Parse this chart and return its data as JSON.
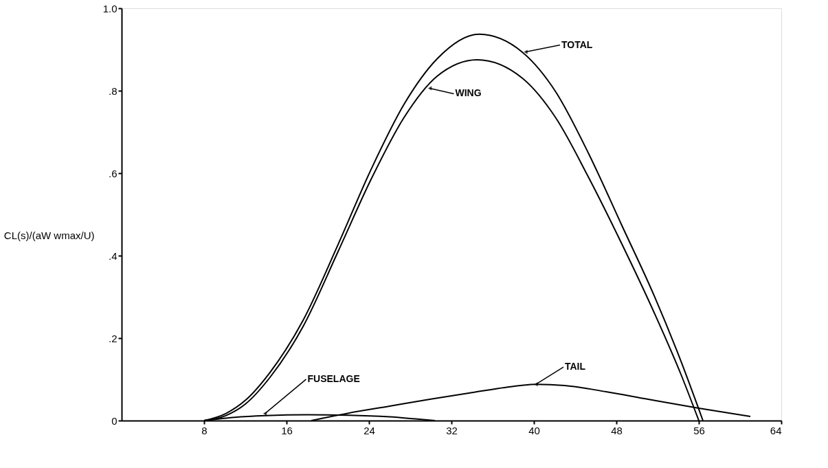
{
  "chart_data": {
    "type": "line",
    "ylabel": "CL(s)/(aW wmax/U)",
    "xlim": [
      0,
      64
    ],
    "xticks": [
      8,
      16,
      24,
      32,
      40,
      48,
      56,
      64
    ],
    "ylim": [
      0,
      1.0
    ],
    "yticks": [
      {
        "value": 0,
        "label": "0"
      },
      {
        "value": 0.2,
        "label": ".2"
      },
      {
        "value": 0.4,
        "label": ".4"
      },
      {
        "value": 0.6,
        "label": ".6"
      },
      {
        "value": 0.8,
        "label": ".8"
      },
      {
        "value": 1.0,
        "label": "1.0"
      }
    ],
    "grid": false,
    "legend": false,
    "marker": "none",
    "line_style": "solid",
    "series": [
      {
        "color": "#000000",
        "x": [
          8,
          10.1,
          12,
          14.4,
          17.6,
          21,
          24.2,
          27.4,
          30.6,
          34.7,
          38.9,
          42.1,
          45.3,
          48.5,
          51.7,
          54.3,
          56.4
        ],
        "values": [
          0,
          0.017,
          0.049,
          0.117,
          0.243,
          0.427,
          0.609,
          0.767,
          0.877,
          0.937,
          0.893,
          0.798,
          0.648,
          0.475,
          0.301,
          0.142,
          0
        ]
      },
      {
        "color": "#000000",
        "x": [
          8,
          10.1,
          12,
          14.4,
          17.6,
          21,
          24.2,
          27.4,
          30.6,
          34.5,
          38.9,
          42.1,
          45.3,
          48.5,
          51.7,
          54.3,
          56
        ],
        "values": [
          0,
          0.012,
          0.04,
          0.105,
          0.228,
          0.41,
          0.585,
          0.735,
          0.835,
          0.875,
          0.83,
          0.735,
          0.59,
          0.43,
          0.26,
          0.11,
          0
        ]
      },
      {
        "color": "#000000",
        "x": [
          8,
          11,
          14,
          18,
          22,
          26,
          28.5,
          30.4
        ],
        "values": [
          0,
          0.008,
          0.012,
          0.014,
          0.013,
          0.009,
          0.004,
          0
        ]
      },
      {
        "color": "#000000",
        "x": [
          18.4,
          22,
          26,
          30,
          34,
          38,
          40.2,
          43,
          47,
          51,
          56,
          61
        ],
        "values": [
          0,
          0.018,
          0.035,
          0.052,
          0.068,
          0.083,
          0.088,
          0.085,
          0.07,
          0.052,
          0.03,
          0.01
        ]
      }
    ],
    "annotations": [
      {
        "text": "TOTAL",
        "x": 39.2,
        "y": 0.894
      },
      {
        "text": "WING",
        "x": 29.9,
        "y": 0.806
      },
      {
        "text": "FUSELAGE",
        "x": 13.9,
        "y": 0.017
      },
      {
        "text": "TAIL",
        "x": 40.2,
        "y": 0.088
      }
    ]
  }
}
